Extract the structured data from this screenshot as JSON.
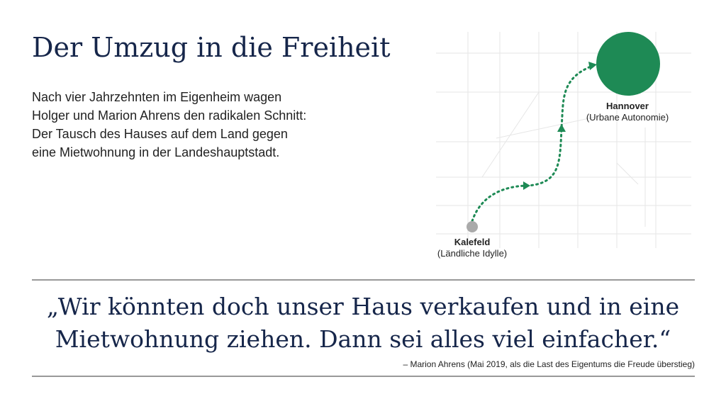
{
  "header": {
    "title": "Der Umzug in die Freiheit"
  },
  "intro": {
    "lines": [
      "Nach vier Jahrzehnten im Eigenheim wagen",
      "Holger und Marion Ahrens den radikalen Schnitt:",
      "Der Tausch des Hauses auf dem Land gegen",
      "eine Mietwohnung in der Landeshauptstadt."
    ]
  },
  "map": {
    "origin": {
      "label": "Kalefeld",
      "sublabel": "(Ländliche Idylle)"
    },
    "destination": {
      "label": "Hannover",
      "sublabel": "(Urbane Autonomie)"
    }
  },
  "quote": {
    "lines": [
      "„Wir könnten doch unser Haus verkaufen und in eine",
      "Mietwohnung ziehen. Dann sei alles viel einfacher.“"
    ],
    "attribution": "– Marion Ahrens (Mai 2019, als die Last des Eigentums die Freude überstieg)"
  }
}
